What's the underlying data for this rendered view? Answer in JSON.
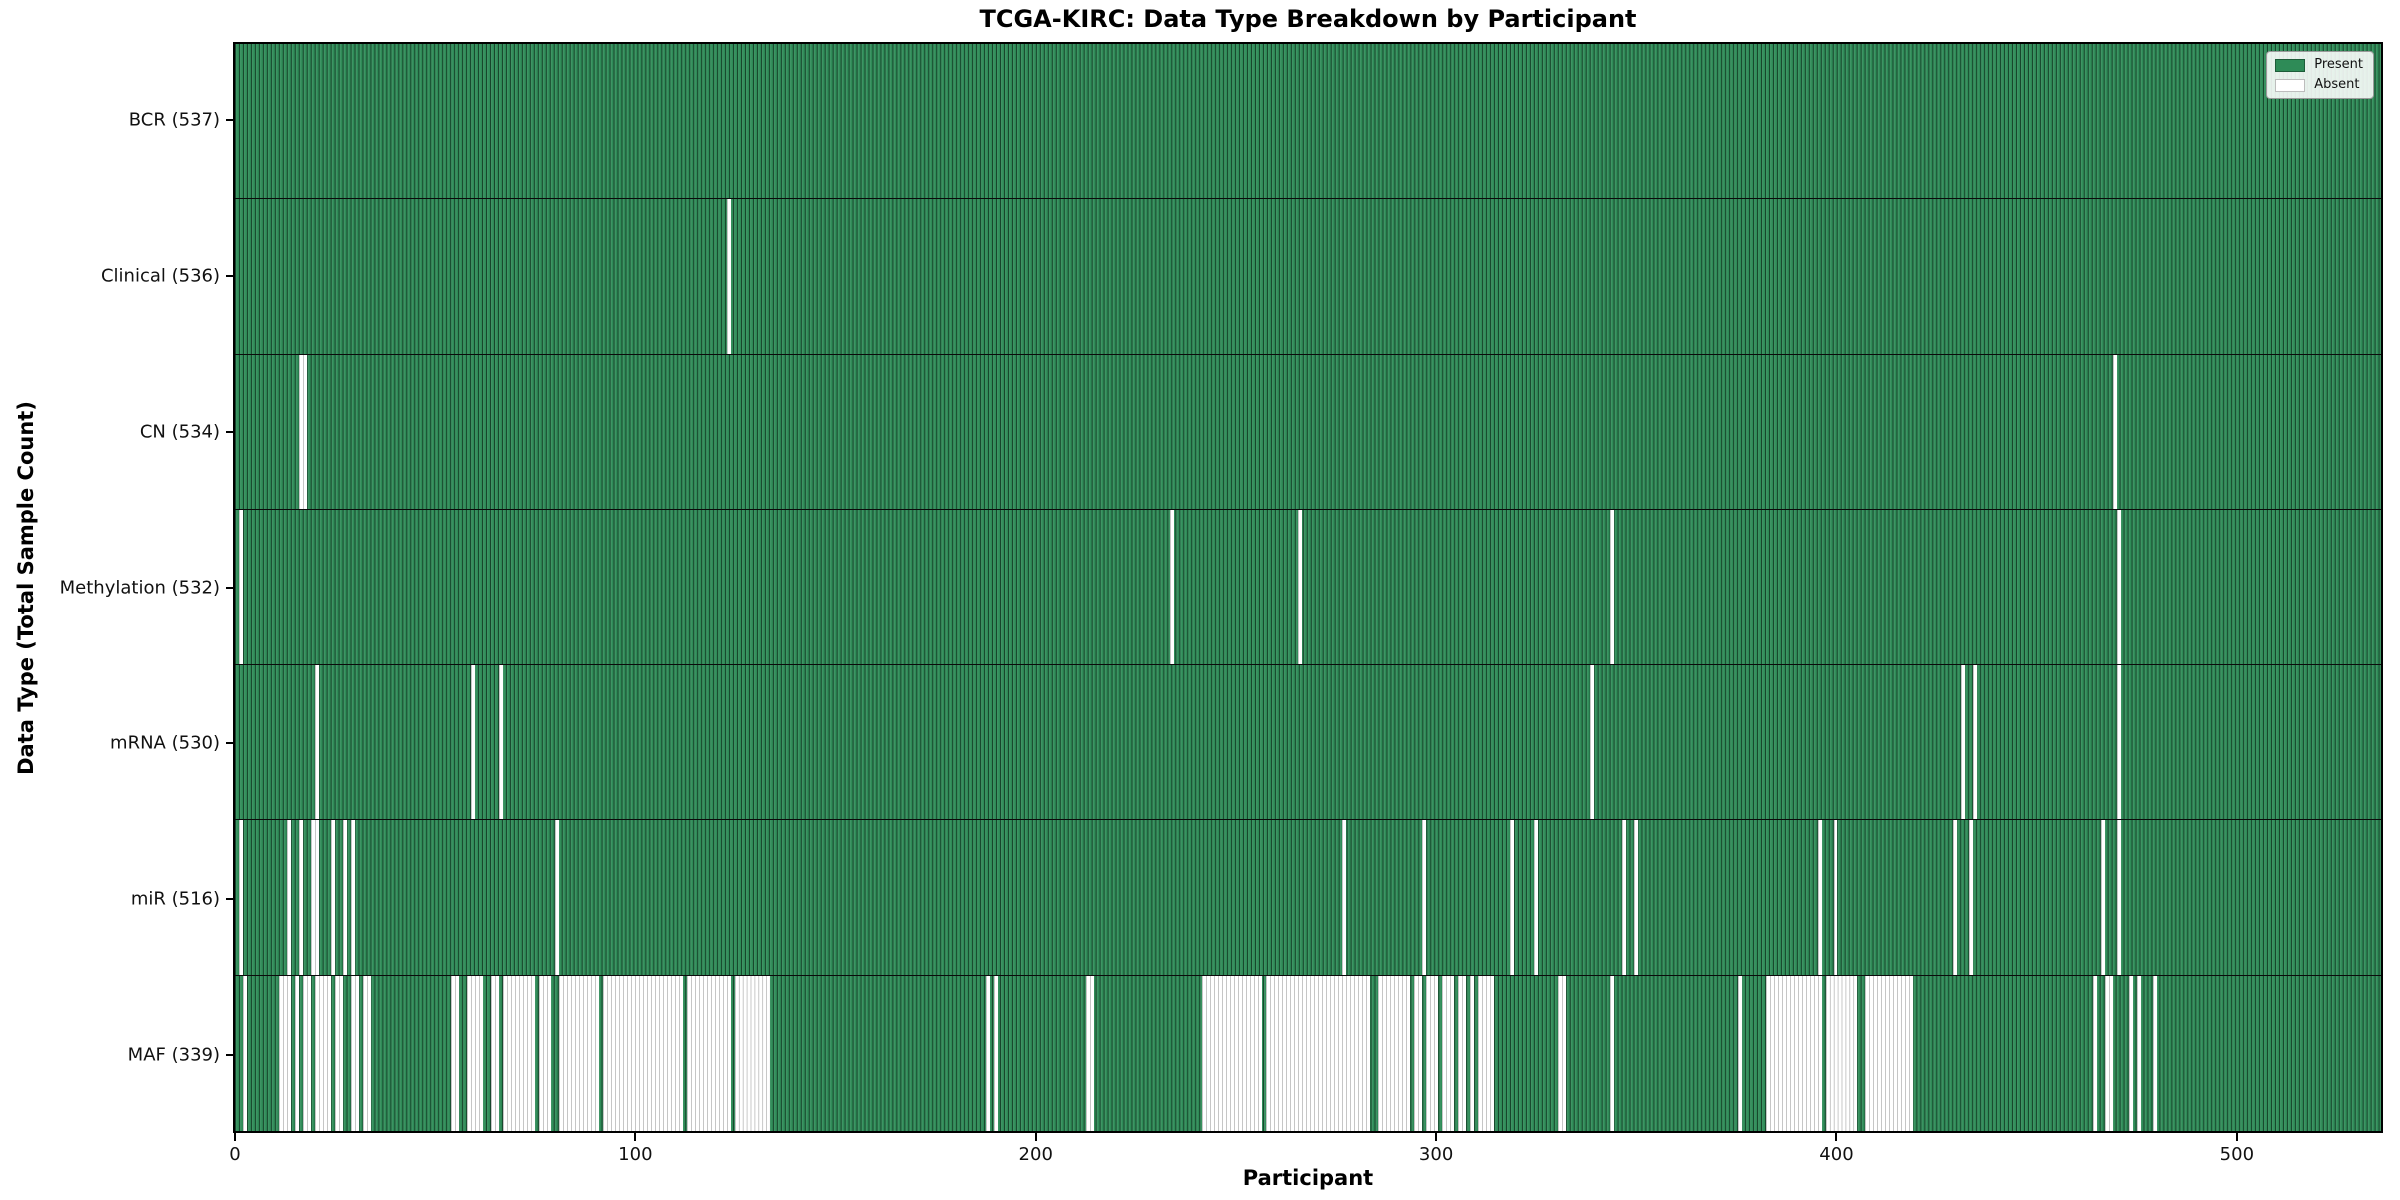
{
  "chart_data": {
    "type": "heatmap",
    "title": "TCGA-KIRC: Data Type Breakdown by Participant",
    "xlabel": "Participant",
    "ylabel": "Data Type (Total Sample Count)",
    "n_participants": 537,
    "x_range": [
      0,
      537
    ],
    "x_ticks": [
      0,
      100,
      200,
      300,
      400,
      500
    ],
    "legend": [
      "Present",
      "Absent"
    ],
    "legend_position": "upper right",
    "colors": {
      "present": "#2e8b57",
      "absent": "#ffffff"
    },
    "rows": [
      {
        "name": "BCR",
        "label": "BCR (537)",
        "present_count": 537,
        "absent_ranges": []
      },
      {
        "name": "Clinical",
        "label": "Clinical (536)",
        "present_count": 536,
        "absent_ranges": [
          [
            123,
            123
          ]
        ]
      },
      {
        "name": "CN",
        "label": "CN (534)",
        "present_count": 534,
        "absent_ranges": [
          [
            16,
            17
          ],
          [
            470,
            470
          ]
        ]
      },
      {
        "name": "Methylation",
        "label": "Methylation (532)",
        "present_count": 532,
        "absent_ranges": [
          [
            1,
            1
          ],
          [
            234,
            234
          ],
          [
            266,
            266
          ],
          [
            344,
            344
          ],
          [
            471,
            471
          ]
        ]
      },
      {
        "name": "mRNA",
        "label": "mRNA (530)",
        "present_count": 530,
        "absent_ranges": [
          [
            20,
            20
          ],
          [
            59,
            59
          ],
          [
            66,
            66
          ],
          [
            339,
            339
          ],
          [
            432,
            432
          ],
          [
            435,
            435
          ],
          [
            471,
            471
          ]
        ]
      },
      {
        "name": "miR",
        "label": "miR (516)",
        "present_count": 516,
        "absent_ranges": [
          [
            1,
            1
          ],
          [
            13,
            13
          ],
          [
            16,
            16
          ],
          [
            19,
            20
          ],
          [
            24,
            24
          ],
          [
            27,
            27
          ],
          [
            29,
            29
          ],
          [
            80,
            80
          ],
          [
            277,
            277
          ],
          [
            297,
            297
          ],
          [
            319,
            319
          ],
          [
            325,
            325
          ],
          [
            347,
            347
          ],
          [
            350,
            350
          ],
          [
            396,
            396
          ],
          [
            400,
            400
          ],
          [
            430,
            430
          ],
          [
            434,
            434
          ],
          [
            467,
            467
          ],
          [
            471,
            471
          ]
        ]
      },
      {
        "name": "MAF",
        "label": "MAF (339)",
        "present_count": 339,
        "absent_ranges": [
          [
            2,
            2
          ],
          [
            11,
            13
          ],
          [
            15,
            15
          ],
          [
            17,
            18
          ],
          [
            20,
            23
          ],
          [
            25,
            26
          ],
          [
            29,
            30
          ],
          [
            32,
            33
          ],
          [
            54,
            55
          ],
          [
            58,
            61
          ],
          [
            64,
            65
          ],
          [
            67,
            74
          ],
          [
            76,
            78
          ],
          [
            81,
            90
          ],
          [
            92,
            111
          ],
          [
            113,
            123
          ],
          [
            125,
            133
          ],
          [
            188,
            188
          ],
          [
            190,
            190
          ],
          [
            213,
            214
          ],
          [
            242,
            256
          ],
          [
            258,
            283
          ],
          [
            286,
            293
          ],
          [
            295,
            296
          ],
          [
            298,
            300
          ],
          [
            302,
            304
          ],
          [
            306,
            307
          ],
          [
            309,
            309
          ],
          [
            311,
            314
          ],
          [
            331,
            332
          ],
          [
            344,
            344
          ],
          [
            376,
            376
          ],
          [
            383,
            396
          ],
          [
            398,
            405
          ],
          [
            408,
            419
          ],
          [
            465,
            465
          ],
          [
            468,
            469
          ],
          [
            474,
            474
          ],
          [
            476,
            476
          ],
          [
            480,
            480
          ]
        ]
      }
    ]
  }
}
